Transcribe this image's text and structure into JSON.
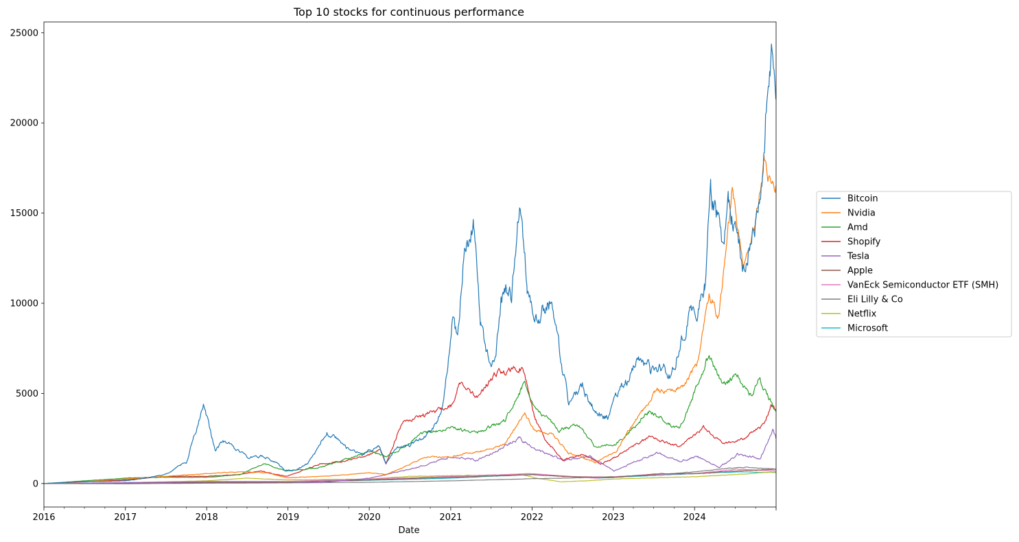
{
  "chart_data": {
    "type": "line",
    "title": "Top 10 stocks for continuous performance",
    "xlabel": "Date",
    "ylabel": "",
    "xlim": [
      "2016-01-01",
      "2024-12-31"
    ],
    "ylim": [
      -1300,
      25600
    ],
    "x_ticks": [
      "2016",
      "2017",
      "2018",
      "2019",
      "2020",
      "2021",
      "2022",
      "2023",
      "2024"
    ],
    "y_ticks": [
      0,
      5000,
      10000,
      15000,
      20000,
      25000
    ],
    "grid": false,
    "legend_position": "center-right-outside",
    "series": [
      {
        "name": "Bitcoin",
        "color": "#1f77b4",
        "points": [
          [
            "2016-01-01",
            0
          ],
          [
            "2016-06-01",
            100
          ],
          [
            "2017-01-01",
            150
          ],
          [
            "2017-04-01",
            300
          ],
          [
            "2017-07-01",
            500
          ],
          [
            "2017-10-01",
            1200
          ],
          [
            "2017-12-17",
            4300
          ],
          [
            "2018-01-15",
            3000
          ],
          [
            "2018-02-10",
            1800
          ],
          [
            "2018-03-15",
            2400
          ],
          [
            "2018-05-01",
            2000
          ],
          [
            "2018-07-01",
            1500
          ],
          [
            "2018-09-01",
            1500
          ],
          [
            "2018-11-01",
            1300
          ],
          [
            "2018-12-15",
            750
          ],
          [
            "2019-02-01",
            750
          ],
          [
            "2019-04-01",
            1100
          ],
          [
            "2019-06-01",
            2300
          ],
          [
            "2019-06-26",
            2800
          ],
          [
            "2019-08-15",
            2400
          ],
          [
            "2019-10-01",
            1900
          ],
          [
            "2019-12-01",
            1600
          ],
          [
            "2020-02-15",
            2100
          ],
          [
            "2020-03-15",
            1100
          ],
          [
            "2020-05-01",
            2000
          ],
          [
            "2020-07-01",
            2100
          ],
          [
            "2020-09-01",
            2500
          ],
          [
            "2020-11-01",
            3300
          ],
          [
            "2020-12-01",
            4500
          ],
          [
            "2021-01-08",
            9000
          ],
          [
            "2021-02-01",
            8000
          ],
          [
            "2021-03-01",
            12500
          ],
          [
            "2021-04-14",
            14500
          ],
          [
            "2021-05-15",
            9000
          ],
          [
            "2021-06-20",
            7000
          ],
          [
            "2021-07-20",
            6800
          ],
          [
            "2021-08-15",
            10000
          ],
          [
            "2021-09-10",
            11000
          ],
          [
            "2021-10-01",
            10500
          ],
          [
            "2021-11-09",
            15500
          ],
          [
            "2021-12-10",
            11000
          ],
          [
            "2022-01-10",
            9000
          ],
          [
            "2022-02-15",
            9500
          ],
          [
            "2022-03-28",
            10000
          ],
          [
            "2022-05-10",
            7000
          ],
          [
            "2022-06-15",
            4500
          ],
          [
            "2022-07-15",
            5000
          ],
          [
            "2022-08-15",
            5300
          ],
          [
            "2022-09-15",
            4500
          ],
          [
            "2022-11-10",
            3700
          ],
          [
            "2022-12-15",
            3700
          ],
          [
            "2023-01-20",
            5000
          ],
          [
            "2023-03-20",
            6000
          ],
          [
            "2023-04-15",
            6900
          ],
          [
            "2023-06-15",
            6500
          ],
          [
            "2023-08-15",
            6300
          ],
          [
            "2023-09-15",
            6000
          ],
          [
            "2023-10-25",
            7500
          ],
          [
            "2023-12-10",
            9500
          ],
          [
            "2024-01-15",
            9800
          ],
          [
            "2024-02-15",
            11000
          ],
          [
            "2024-03-14",
            16700
          ],
          [
            "2024-05-01",
            13500
          ],
          [
            "2024-06-01",
            15500
          ],
          [
            "2024-08-05",
            12000
          ],
          [
            "2024-09-15",
            13500
          ],
          [
            "2024-10-20",
            15500
          ],
          [
            "2024-11-15",
            20000
          ],
          [
            "2024-12-05",
            22500
          ],
          [
            "2024-12-17",
            24300
          ],
          [
            "2024-12-31",
            21300
          ]
        ]
      },
      {
        "name": "Nvidia",
        "color": "#ff7f0e",
        "points": [
          [
            "2016-01-01",
            0
          ],
          [
            "2016-07-01",
            100
          ],
          [
            "2017-01-01",
            250
          ],
          [
            "2017-07-01",
            400
          ],
          [
            "2018-01-01",
            550
          ],
          [
            "2018-06-01",
            650
          ],
          [
            "2018-10-01",
            600
          ],
          [
            "2018-12-25",
            320
          ],
          [
            "2019-06-01",
            400
          ],
          [
            "2019-10-01",
            500
          ],
          [
            "2020-01-01",
            600
          ],
          [
            "2020-03-16",
            500
          ],
          [
            "2020-06-01",
            900
          ],
          [
            "2020-09-01",
            1450
          ],
          [
            "2021-01-01",
            1500
          ],
          [
            "2021-03-01",
            1650
          ],
          [
            "2021-06-01",
            1800
          ],
          [
            "2021-09-01",
            2200
          ],
          [
            "2021-11-29",
            3900
          ],
          [
            "2022-01-15",
            2900
          ],
          [
            "2022-03-28",
            2800
          ],
          [
            "2022-06-15",
            1700
          ],
          [
            "2022-10-13",
            1200
          ],
          [
            "2023-01-15",
            1800
          ],
          [
            "2023-03-01",
            2800
          ],
          [
            "2023-05-25",
            4200
          ],
          [
            "2023-07-15",
            5200
          ],
          [
            "2023-09-15",
            5000
          ],
          [
            "2023-11-20",
            5500
          ],
          [
            "2024-01-15",
            6800
          ],
          [
            "2024-03-08",
            10500
          ],
          [
            "2024-04-19",
            9200
          ],
          [
            "2024-06-18",
            16300
          ],
          [
            "2024-08-05",
            11900
          ],
          [
            "2024-09-15",
            13500
          ],
          [
            "2024-11-07",
            17900
          ],
          [
            "2024-12-10",
            16800
          ],
          [
            "2024-12-31",
            16500
          ]
        ]
      },
      {
        "name": "Amd",
        "color": "#2ca02c",
        "points": [
          [
            "2016-01-01",
            0
          ],
          [
            "2016-07-01",
            150
          ],
          [
            "2017-01-01",
            300
          ],
          [
            "2017-06-01",
            350
          ],
          [
            "2018-01-01",
            350
          ],
          [
            "2018-06-01",
            500
          ],
          [
            "2018-09-13",
            1100
          ],
          [
            "2018-12-24",
            700
          ],
          [
            "2019-06-01",
            900
          ],
          [
            "2019-12-31",
            1800
          ],
          [
            "2020-03-16",
            1500
          ],
          [
            "2020-06-01",
            2000
          ],
          [
            "2020-09-01",
            2800
          ],
          [
            "2021-01-01",
            3100
          ],
          [
            "2021-05-01",
            2800
          ],
          [
            "2021-09-01",
            3500
          ],
          [
            "2021-11-30",
            5600
          ],
          [
            "2022-01-15",
            4300
          ],
          [
            "2022-05-01",
            3000
          ],
          [
            "2022-08-01",
            3200
          ],
          [
            "2022-10-13",
            2000
          ],
          [
            "2023-01-15",
            2200
          ],
          [
            "2023-06-13",
            4000
          ],
          [
            "2023-10-26",
            3000
          ],
          [
            "2024-03-07",
            7200
          ],
          [
            "2024-05-01",
            5500
          ],
          [
            "2024-07-10",
            6000
          ],
          [
            "2024-09-15",
            4800
          ],
          [
            "2024-10-15",
            5900
          ],
          [
            "2024-12-31",
            4000
          ]
        ]
      },
      {
        "name": "Shopify",
        "color": "#d62728",
        "points": [
          [
            "2016-01-01",
            0
          ],
          [
            "2016-07-01",
            100
          ],
          [
            "2017-01-01",
            200
          ],
          [
            "2017-07-01",
            400
          ],
          [
            "2018-01-01",
            400
          ],
          [
            "2018-06-01",
            500
          ],
          [
            "2018-09-01",
            700
          ],
          [
            "2018-12-24",
            400
          ],
          [
            "2019-06-01",
            1100
          ],
          [
            "2019-09-01",
            1200
          ],
          [
            "2019-12-31",
            1600
          ],
          [
            "2020-02-20",
            1900
          ],
          [
            "2020-03-16",
            1100
          ],
          [
            "2020-06-01",
            3500
          ],
          [
            "2020-09-01",
            3800
          ],
          [
            "2021-01-01",
            4300
          ],
          [
            "2021-02-10",
            5600
          ],
          [
            "2021-05-01",
            4700
          ],
          [
            "2021-07-15",
            6100
          ],
          [
            "2021-11-18",
            6400
          ],
          [
            "2022-01-15",
            3600
          ],
          [
            "2022-03-01",
            2400
          ],
          [
            "2022-05-20",
            1300
          ],
          [
            "2022-08-15",
            1600
          ],
          [
            "2022-11-04",
            1100
          ],
          [
            "2023-01-15",
            1500
          ],
          [
            "2023-06-15",
            2600
          ],
          [
            "2023-10-25",
            2000
          ],
          [
            "2024-02-10",
            3100
          ],
          [
            "2024-05-10",
            2200
          ],
          [
            "2024-08-10",
            2500
          ],
          [
            "2024-11-10",
            3300
          ],
          [
            "2024-12-10",
            4400
          ],
          [
            "2024-12-31",
            4100
          ]
        ]
      },
      {
        "name": "Tesla",
        "color": "#9467bd",
        "points": [
          [
            "2016-01-01",
            0
          ],
          [
            "2017-01-01",
            50
          ],
          [
            "2018-01-01",
            100
          ],
          [
            "2019-01-01",
            100
          ],
          [
            "2019-06-01",
            50
          ],
          [
            "2020-01-01",
            300
          ],
          [
            "2020-06-01",
            700
          ],
          [
            "2020-09-01",
            1000
          ],
          [
            "2021-01-01",
            1500
          ],
          [
            "2021-05-01",
            1300
          ],
          [
            "2021-11-04",
            2500
          ],
          [
            "2022-01-15",
            1900
          ],
          [
            "2022-05-20",
            1300
          ],
          [
            "2022-09-20",
            1500
          ],
          [
            "2023-01-03",
            700
          ],
          [
            "2023-07-18",
            1700
          ],
          [
            "2023-10-25",
            1250
          ],
          [
            "2024-01-15",
            1500
          ],
          [
            "2024-04-22",
            900
          ],
          [
            "2024-07-10",
            1600
          ],
          [
            "2024-10-23",
            1400
          ],
          [
            "2024-12-17",
            2900
          ],
          [
            "2024-12-31",
            2500
          ]
        ]
      },
      {
        "name": "Apple",
        "color": "#8c564b",
        "points": [
          [
            "2016-01-01",
            0
          ],
          [
            "2017-01-01",
            30
          ],
          [
            "2018-01-01",
            60
          ],
          [
            "2019-01-01",
            60
          ],
          [
            "2020-01-01",
            200
          ],
          [
            "2021-01-01",
            350
          ],
          [
            "2022-01-03",
            500
          ],
          [
            "2022-06-15",
            380
          ],
          [
            "2023-01-05",
            350
          ],
          [
            "2023-07-31",
            550
          ],
          [
            "2024-01-01",
            550
          ],
          [
            "2024-07-15",
            700
          ],
          [
            "2024-12-31",
            800
          ]
        ]
      },
      {
        "name": "VanEck Semiconductor ETF (SMH)",
        "color": "#e377c2",
        "points": [
          [
            "2016-01-01",
            0
          ],
          [
            "2017-01-01",
            50
          ],
          [
            "2018-01-01",
            120
          ],
          [
            "2019-01-01",
            120
          ],
          [
            "2020-01-01",
            250
          ],
          [
            "2021-01-01",
            400
          ],
          [
            "2021-12-27",
            550
          ],
          [
            "2022-10-13",
            300
          ],
          [
            "2023-06-15",
            500
          ],
          [
            "2024-01-01",
            550
          ],
          [
            "2024-07-10",
            800
          ],
          [
            "2024-12-31",
            700
          ]
        ]
      },
      {
        "name": "Eli Lilly & Co",
        "color": "#7f7f7f",
        "points": [
          [
            "2016-01-01",
            0
          ],
          [
            "2017-01-01",
            -10
          ],
          [
            "2018-01-01",
            20
          ],
          [
            "2019-01-01",
            40
          ],
          [
            "2020-01-01",
            70
          ],
          [
            "2021-01-01",
            150
          ],
          [
            "2022-01-01",
            270
          ],
          [
            "2022-06-01",
            300
          ],
          [
            "2023-01-01",
            380
          ],
          [
            "2023-06-01",
            450
          ],
          [
            "2024-01-01",
            650
          ],
          [
            "2024-06-01",
            850
          ],
          [
            "2024-08-20",
            900
          ],
          [
            "2024-12-31",
            800
          ]
        ]
      },
      {
        "name": "Netflix",
        "color": "#bcbd22",
        "points": [
          [
            "2016-01-01",
            0
          ],
          [
            "2017-01-01",
            50
          ],
          [
            "2018-01-01",
            150
          ],
          [
            "2018-07-01",
            300
          ],
          [
            "2019-01-01",
            200
          ],
          [
            "2020-01-01",
            250
          ],
          [
            "2020-07-01",
            400
          ],
          [
            "2021-11-17",
            500
          ],
          [
            "2022-01-20",
            300
          ],
          [
            "2022-05-10",
            100
          ],
          [
            "2022-09-01",
            150
          ],
          [
            "2023-01-01",
            250
          ],
          [
            "2023-07-01",
            320
          ],
          [
            "2024-01-01",
            380
          ],
          [
            "2024-07-01",
            500
          ],
          [
            "2024-12-31",
            650
          ]
        ]
      },
      {
        "name": "Microsoft",
        "color": "#17becf",
        "points": [
          [
            "2016-01-01",
            0
          ],
          [
            "2017-01-01",
            40
          ],
          [
            "2018-01-01",
            80
          ],
          [
            "2019-01-01",
            100
          ],
          [
            "2020-01-01",
            180
          ],
          [
            "2021-01-01",
            300
          ],
          [
            "2021-12-27",
            500
          ],
          [
            "2022-11-01",
            300
          ],
          [
            "2023-07-01",
            450
          ],
          [
            "2024-01-01",
            550
          ],
          [
            "2024-07-05",
            650
          ],
          [
            "2024-12-31",
            620
          ]
        ]
      }
    ]
  }
}
